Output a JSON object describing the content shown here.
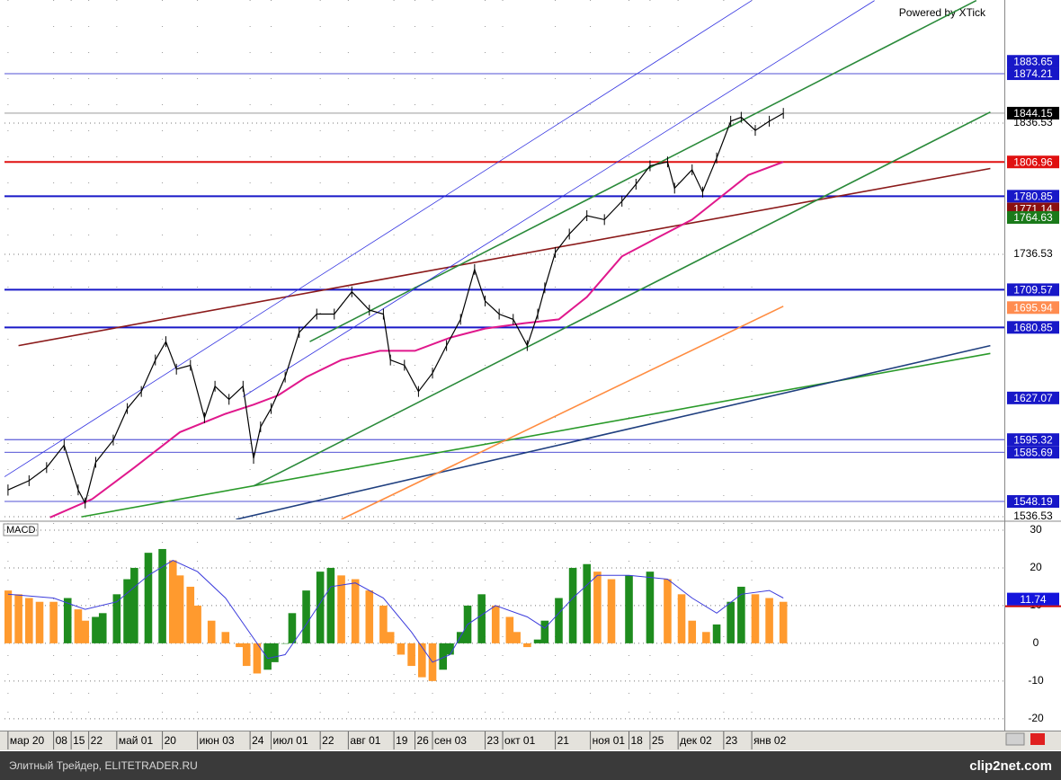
{
  "chart_data": [
    {
      "type": "line",
      "annotation": "Powered by XTick",
      "xlim": [
        -1,
        284
      ],
      "ylim": [
        1534.5,
        1930.4
      ],
      "yticks": [
        1536.53,
        1736.53,
        1836.53
      ],
      "grid": true,
      "series": [
        {
          "color": "#000000",
          "x": [
            0,
            6,
            11,
            16,
            20,
            22,
            25,
            30,
            34,
            38,
            42,
            45,
            48,
            52,
            56,
            59,
            63,
            67,
            70,
            72,
            75,
            79,
            83,
            88,
            93,
            98,
            103,
            107,
            109,
            113,
            117,
            121,
            125,
            129,
            133,
            136,
            140,
            144,
            148,
            151,
            153,
            156,
            160,
            165,
            170,
            175,
            179,
            183,
            188,
            190,
            195,
            198,
            202,
            206,
            209,
            213,
            217,
            221
          ],
          "values": [
            1557,
            1564,
            1574,
            1591,
            1557,
            1547,
            1578,
            1595,
            1619,
            1632,
            1656,
            1670,
            1649,
            1652,
            1612,
            1636,
            1626,
            1636,
            1581,
            1605,
            1619,
            1643,
            1677,
            1691,
            1691,
            1708,
            1694,
            1691,
            1656,
            1652,
            1632,
            1646,
            1667,
            1687,
            1725,
            1701,
            1691,
            1687,
            1667,
            1691,
            1711,
            1738,
            1752,
            1766,
            1763,
            1777,
            1790,
            1804,
            1807,
            1787,
            1801,
            1784,
            1810,
            1838,
            1841,
            1831,
            1838,
            1844
          ]
        },
        {
          "color": "#e0188c",
          "x": [
            12,
            24,
            36,
            49,
            62,
            70,
            77,
            85,
            95,
            106,
            116,
            126,
            136,
            147,
            157,
            165,
            175,
            185,
            195,
            203,
            211,
            221
          ],
          "values": [
            1536,
            1550,
            1574,
            1601,
            1615,
            1622,
            1629,
            1643,
            1656,
            1663,
            1663,
            1673,
            1680,
            1684,
            1687,
            1704,
            1735,
            1749,
            1763,
            1780,
            1797,
            1807
          ]
        }
      ],
      "trendlines": [
        {
          "color": "#8b1a1a",
          "style": "solid",
          "x": [
            3,
            280
          ],
          "values": [
            1667,
            1802
          ]
        },
        {
          "color": "#2a9a2a",
          "style": "solid",
          "x": [
            21,
            280
          ],
          "values": [
            1536.5,
            1661
          ]
        },
        {
          "color": "#1f3f7f",
          "style": "dashed",
          "x": [
            65,
            280
          ],
          "values": [
            1534.5,
            1667
          ]
        },
        {
          "color": "#ff8c40",
          "style": "solid",
          "x": [
            95,
            221
          ],
          "values": [
            1534.5,
            1697
          ]
        },
        {
          "color": "#2a8a3a",
          "style": "dashed",
          "x": [
            86,
            276
          ],
          "values": [
            1670,
            1930
          ]
        },
        {
          "color": "#2a8a3a",
          "style": "dashed",
          "x": [
            70,
            280
          ],
          "values": [
            1560,
            1845
          ]
        },
        {
          "color": "#3030e0",
          "style": "dotted",
          "x": [
            -1,
            212
          ],
          "values": [
            1567,
            1930
          ]
        },
        {
          "color": "#3030e0",
          "style": "dotted",
          "x": [
            67,
            247
          ],
          "values": [
            1628,
            1930
          ]
        }
      ],
      "levels": [
        {
          "value": 1883.65,
          "color": "#1818c8",
          "line": "none"
        },
        {
          "value": 1874.21,
          "color": "#1818c8",
          "line": "thin"
        },
        {
          "value": 1844.15,
          "color": "#000000",
          "line": "thin"
        },
        {
          "value": 1806.96,
          "color": "#e01010",
          "line": "thick"
        },
        {
          "value": 1780.85,
          "color": "#1818c8",
          "line": "thick"
        },
        {
          "value": 1771.14,
          "color": "#8b1010",
          "line": "none"
        },
        {
          "value": 1764.63,
          "color": "#1a7a1a",
          "line": "none"
        },
        {
          "value": 1709.57,
          "color": "#1818c8",
          "line": "thick"
        },
        {
          "value": 1695.94,
          "color": "#ff8c50",
          "line": "none"
        },
        {
          "value": 1680.85,
          "color": "#1818c8",
          "line": "thick"
        },
        {
          "value": 1627.07,
          "color": "#1818c8",
          "line": "none"
        },
        {
          "value": 1595.32,
          "color": "#1818c8",
          "line": "thin"
        },
        {
          "value": 1585.69,
          "color": "#1818c8",
          "line": "thin"
        },
        {
          "value": 1548.19,
          "color": "#1818c8",
          "line": "thin"
        }
      ]
    },
    {
      "type": "bar",
      "title": "MACD",
      "xlim": [
        -1,
        284
      ],
      "ylim": [
        -22.9,
        31.9
      ],
      "yticks": [
        -20,
        -10,
        0,
        10,
        20,
        30
      ],
      "grid": true,
      "xticks": [
        {
          "value": 0,
          "label": "мар 20"
        },
        {
          "value": 13,
          "label": "08"
        },
        {
          "value": 18,
          "label": "15"
        },
        {
          "value": 23,
          "label": "22"
        },
        {
          "value": 31,
          "label": "май 01"
        },
        {
          "value": 44,
          "label": "20"
        },
        {
          "value": 54,
          "label": "июн 03"
        },
        {
          "value": 69,
          "label": "24"
        },
        {
          "value": 75,
          "label": "июл 01"
        },
        {
          "value": 89,
          "label": "22"
        },
        {
          "value": 97,
          "label": "авг 01"
        },
        {
          "value": 110,
          "label": "19"
        },
        {
          "value": 116,
          "label": "26"
        },
        {
          "value": 121,
          "label": "сен 03"
        },
        {
          "value": 136,
          "label": "23"
        },
        {
          "value": 141,
          "label": "окт 01"
        },
        {
          "value": 156,
          "label": "21"
        },
        {
          "value": 166,
          "label": "ноя 01"
        },
        {
          "value": 177,
          "label": "18"
        },
        {
          "value": 183,
          "label": "25"
        },
        {
          "value": 191,
          "label": "дек 02"
        },
        {
          "value": 204,
          "label": "23"
        },
        {
          "value": 212,
          "label": "янв 02"
        }
      ],
      "x": [
        0,
        3,
        6,
        9,
        13,
        17,
        20,
        22,
        25,
        27,
        31,
        34,
        36,
        40,
        44,
        47,
        49,
        52,
        54,
        58,
        62,
        66,
        68,
        71,
        74,
        76,
        79,
        81,
        85,
        89,
        92,
        95,
        99,
        103,
        107,
        109,
        112,
        115,
        118,
        121,
        124,
        126,
        129,
        131,
        135,
        139,
        143,
        145,
        148,
        151,
        153,
        157,
        161,
        165,
        168,
        172,
        177,
        183,
        188,
        192,
        195,
        199,
        202,
        206,
        209,
        213,
        217,
        221
      ],
      "values": [
        14,
        13,
        12,
        11,
        11,
        12,
        9,
        6,
        7,
        8,
        13,
        17,
        20,
        24,
        25,
        22,
        18,
        15,
        10,
        6,
        3,
        -1,
        -6,
        -8,
        -7,
        -5,
        0,
        8,
        14,
        19,
        20,
        18,
        17,
        14,
        10,
        3,
        -3,
        -6,
        -9,
        -10,
        -7,
        -3,
        3,
        10,
        13,
        10,
        7,
        3,
        -1,
        1,
        6,
        12,
        20,
        21,
        19,
        17,
        18,
        19,
        17,
        13,
        6,
        3,
        5,
        11,
        15,
        13,
        12,
        11
      ],
      "rising_color": "#1e8c1e",
      "falling_color": "#ff9a2e",
      "signal": {
        "color": "#3c3cdc",
        "x": [
          0,
          13,
          22,
          31,
          40,
          47,
          54,
          62,
          68,
          74,
          79,
          85,
          92,
          99,
          107,
          115,
          121,
          126,
          131,
          139,
          148,
          153,
          161,
          168,
          177,
          188,
          195,
          202,
          209,
          217,
          221
        ],
        "values": [
          13,
          12,
          9,
          11,
          18,
          22,
          19,
          12,
          4,
          -4,
          -3,
          5,
          15,
          16,
          12,
          3,
          -5,
          -3,
          5,
          10,
          7,
          4,
          12,
          18,
          18,
          17,
          12,
          8,
          13,
          14,
          12
        ]
      },
      "last": {
        "value": 11.74,
        "color": "#1414dc"
      }
    }
  ],
  "footer": {
    "left": "Элитный Трейдер, ELITETRADER.RU",
    "right": "clip2net.com"
  }
}
